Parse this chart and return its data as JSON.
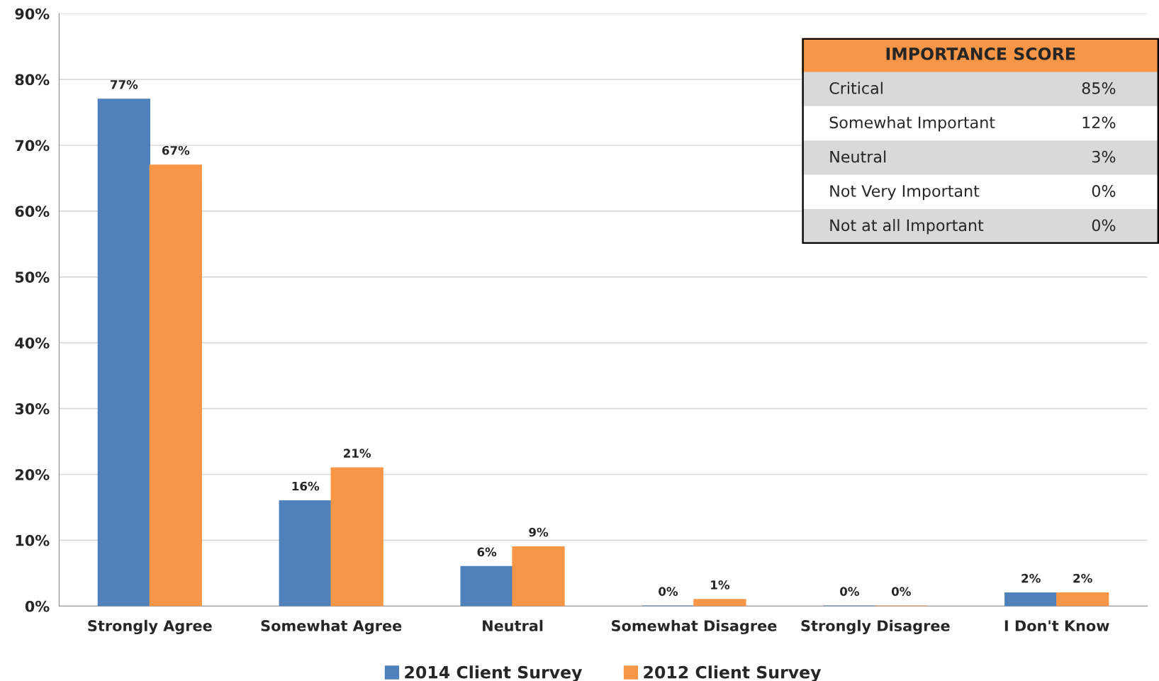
{
  "chart_data": [
    {
      "type": "bar",
      "categories": [
        "Strongly Agree",
        "Somewhat Agree",
        "Neutral",
        "Somewhat Disagree",
        "Strongly Disagree",
        "I Don't Know"
      ],
      "series": [
        {
          "name": "2014 Client Survey",
          "color": "#4f81bd",
          "values": [
            77,
            16,
            6,
            0,
            0,
            2
          ],
          "value_labels": [
            "77%",
            "16%",
            "6%",
            "0%",
            "0%",
            "2%"
          ]
        },
        {
          "name": "2012 Client Survey",
          "color": "#f79646",
          "values": [
            67,
            21,
            9,
            1,
            0,
            2
          ],
          "value_labels": [
            "67%",
            "21%",
            "9%",
            "1%",
            "0%",
            "2%"
          ]
        }
      ],
      "ylim": [
        0,
        90
      ],
      "yticks": [
        {
          "value": 0,
          "label": "0%"
        },
        {
          "value": 10,
          "label": "10%"
        },
        {
          "value": 20,
          "label": "20%"
        },
        {
          "value": 30,
          "label": "30%"
        },
        {
          "value": 40,
          "label": "40%"
        },
        {
          "value": 50,
          "label": "50%"
        },
        {
          "value": 60,
          "label": "60%"
        },
        {
          "value": 70,
          "label": "70%"
        },
        {
          "value": 80,
          "label": "80%"
        },
        {
          "value": 90,
          "label": "90%"
        }
      ],
      "grid": "y",
      "legend": "bottom"
    },
    {
      "type": "other",
      "title": "IMPORTANCE SCORE",
      "categories": [
        "Critical",
        "Somewhat Important",
        "Neutral",
        "Not Very Important",
        "Not at all Important"
      ],
      "annotations": [
        "85%",
        "12%",
        "3%",
        "0%",
        "0%"
      ]
    }
  ]
}
